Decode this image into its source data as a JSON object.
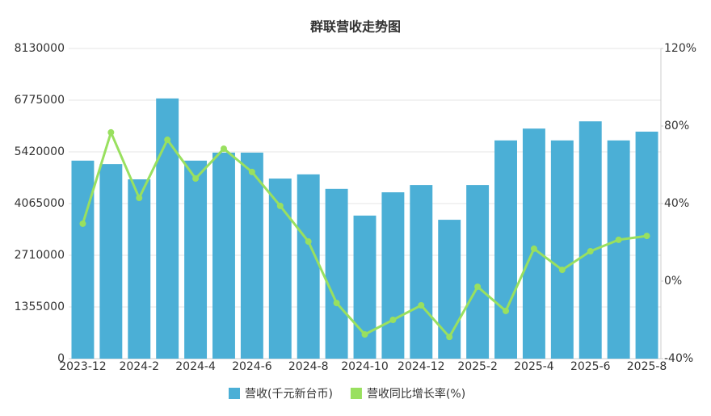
{
  "chart_data": {
    "type": "bar-line",
    "title": "群联营收走势图",
    "categories": [
      "2023-12",
      null,
      "2024-2",
      null,
      "2024-4",
      null,
      "2024-6",
      null,
      "2024-8",
      null,
      "2024-10",
      null,
      "2024-12",
      null,
      "2025-2",
      null,
      "2025-4",
      null,
      "2025-6",
      null,
      "2025-8"
    ],
    "series": [
      {
        "name": "营收(千元新台币)",
        "color": "#4bafd6",
        "type": "bar",
        "values": [
          5190000,
          5100000,
          4700000,
          6820000,
          5190000,
          5400000,
          5400000,
          4720000,
          4830000,
          4450000,
          3750000,
          4360000,
          4550000,
          3640000,
          4550000,
          5720000,
          6030000,
          5720000,
          6220000,
          5720000,
          5950000
        ]
      },
      {
        "name": "营收同比增长率(%)",
        "color": "#99e05f",
        "type": "line",
        "axis": "y2",
        "values": [
          29.6,
          76.7,
          42.9,
          72.9,
          52.9,
          68.3,
          56.3,
          38.8,
          20.4,
          -11.3,
          -27.5,
          -20,
          -12.5,
          -28.8,
          -2.9,
          -15.4,
          16.7,
          5.8,
          15.4,
          21.3,
          23.3
        ]
      }
    ],
    "ylim": [
      0,
      8130000
    ],
    "yticks": [
      0,
      1355000,
      2710000,
      4065000,
      5420000,
      6775000,
      8130000
    ],
    "y2lim": [
      -40,
      120
    ],
    "y2ticks": [
      {
        "value": -40,
        "label": "-40%"
      },
      {
        "value": 0,
        "label": "0%"
      },
      {
        "value": 40,
        "label": "40%"
      },
      {
        "value": 80,
        "label": "80%"
      },
      {
        "value": 120,
        "label": "120%"
      }
    ],
    "grid": true,
    "legend": "bottom"
  }
}
